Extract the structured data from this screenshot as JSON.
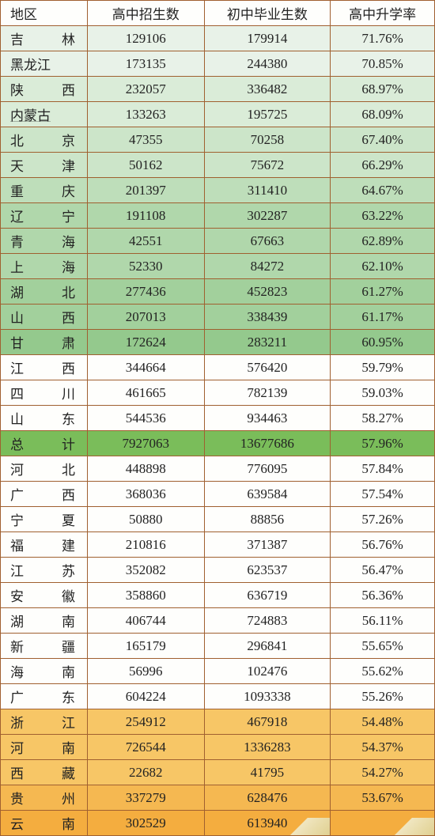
{
  "columns": [
    "地区",
    "高中招生数",
    "初中毕业生数",
    "高中升学率"
  ],
  "colors": {
    "border": "#a06030",
    "total_bg": "#7abd5a",
    "green_max": "#94c98d",
    "green_min": "#e8f2e8",
    "white": "#fefefc",
    "orange_min": "#f7c666",
    "orange_max": "#f4ad3f"
  },
  "rows": [
    {
      "region": [
        "吉",
        "林"
      ],
      "gap": 2,
      "enroll": "129106",
      "grad": "179914",
      "rate": "71.76%",
      "bg": "bg-green-1",
      "ul": true
    },
    {
      "region": [
        "黑龙江",
        ""
      ],
      "gap": 3,
      "enroll": "173135",
      "grad": "244380",
      "rate": "70.85%",
      "bg": "bg-green-1"
    },
    {
      "region": [
        "陕",
        "西"
      ],
      "gap": 2,
      "enroll": "232057",
      "grad": "336482",
      "rate": "68.97%",
      "bg": "bg-green-2",
      "ul": true
    },
    {
      "region": [
        "内蒙古",
        ""
      ],
      "gap": 3,
      "enroll": "133263",
      "grad": "195725",
      "rate": "68.09%",
      "bg": "bg-green-2",
      "ul": true
    },
    {
      "region": [
        "北",
        "京"
      ],
      "gap": 2,
      "enroll": "47355",
      "grad": "70258",
      "rate": "67.40%",
      "bg": "bg-green-3",
      "ul": true
    },
    {
      "region": [
        "天",
        "津"
      ],
      "gap": 2,
      "enroll": "50162",
      "grad": "75672",
      "rate": "66.29%",
      "bg": "bg-green-3",
      "ul": true
    },
    {
      "region": [
        "重",
        "庆"
      ],
      "gap": 2,
      "enroll": "201397",
      "grad": "311410",
      "rate": "64.67%",
      "bg": "bg-green-4",
      "ul": true
    },
    {
      "region": [
        "辽",
        "宁"
      ],
      "gap": 2,
      "enroll": "191108",
      "grad": "302287",
      "rate": "63.22%",
      "bg": "bg-green-5",
      "ul": true
    },
    {
      "region": [
        "青",
        "海"
      ],
      "gap": 2,
      "enroll": "42551",
      "grad": "67663",
      "rate": "62.89%",
      "bg": "bg-green-5",
      "ul": true
    },
    {
      "region": [
        "上",
        "海"
      ],
      "gap": 2,
      "enroll": "52330",
      "grad": "84272",
      "rate": "62.10%",
      "bg": "bg-green-5",
      "ul": true
    },
    {
      "region": [
        "湖",
        "北"
      ],
      "gap": 2,
      "enroll": "277436",
      "grad": "452823",
      "rate": "61.27%",
      "bg": "bg-green-6",
      "ul": true
    },
    {
      "region": [
        "山",
        "西"
      ],
      "gap": 2,
      "enroll": "207013",
      "grad": "338439",
      "rate": "61.17%",
      "bg": "bg-green-6",
      "ul": true
    },
    {
      "region": [
        "甘",
        "肃"
      ],
      "gap": 2,
      "enroll": "172624",
      "grad": "283211",
      "rate": "60.95%",
      "bg": "bg-green-7",
      "ul": true
    },
    {
      "region": [
        "江",
        "西"
      ],
      "gap": 2,
      "enroll": "344664",
      "grad": "576420",
      "rate": "59.79%",
      "bg": "bg-white",
      "ul": true
    },
    {
      "region": [
        "四",
        "川"
      ],
      "gap": 2,
      "enroll": "461665",
      "grad": "782139",
      "rate": "59.03%",
      "bg": "bg-white",
      "ul": true
    },
    {
      "region": [
        "山",
        "东"
      ],
      "gap": 2,
      "enroll": "544536",
      "grad": "934463",
      "rate": "58.27%",
      "bg": "bg-white",
      "ul": true
    },
    {
      "region": [
        "总",
        "计"
      ],
      "gap": 2,
      "enroll": "7927063",
      "grad": "13677686",
      "rate": "57.96%",
      "bg": "bg-total",
      "ul": true
    },
    {
      "region": [
        "河",
        "北"
      ],
      "gap": 2,
      "enroll": "448898",
      "grad": "776095",
      "rate": "57.84%",
      "bg": "bg-white",
      "ul": true
    },
    {
      "region": [
        "广",
        "西"
      ],
      "gap": 2,
      "enroll": "368036",
      "grad": "639584",
      "rate": "57.54%",
      "bg": "bg-white",
      "ul": true
    },
    {
      "region": [
        "宁",
        "夏"
      ],
      "gap": 2,
      "enroll": "50880",
      "grad": "88856",
      "rate": "57.26%",
      "bg": "bg-white",
      "ul": true
    },
    {
      "region": [
        "福",
        "建"
      ],
      "gap": 2,
      "enroll": "210816",
      "grad": "371387",
      "rate": "56.76%",
      "bg": "bg-white",
      "ul": true
    },
    {
      "region": [
        "江",
        "苏"
      ],
      "gap": 2,
      "enroll": "352082",
      "grad": "623537",
      "rate": "56.47%",
      "bg": "bg-white",
      "ul": true
    },
    {
      "region": [
        "安",
        "徽"
      ],
      "gap": 2,
      "enroll": "358860",
      "grad": "636719",
      "rate": "56.36%",
      "bg": "bg-white",
      "ul": true
    },
    {
      "region": [
        "湖",
        "南"
      ],
      "gap": 2,
      "enroll": "406744",
      "grad": "724883",
      "rate": "56.11%",
      "bg": "bg-white",
      "ul": true
    },
    {
      "region": [
        "新",
        "疆"
      ],
      "gap": 2,
      "enroll": "165179",
      "grad": "296841",
      "rate": "55.65%",
      "bg": "bg-white"
    },
    {
      "region": [
        "海",
        "南"
      ],
      "gap": 2,
      "enroll": "56996",
      "grad": "102476",
      "rate": "55.62%",
      "bg": "bg-white",
      "ul": true
    },
    {
      "region": [
        "广",
        "东"
      ],
      "gap": 2,
      "enroll": "604224",
      "grad": "1093338",
      "rate": "55.26%",
      "bg": "bg-white",
      "ul": true
    },
    {
      "region": [
        "浙",
        "江"
      ],
      "gap": 2,
      "enroll": "254912",
      "grad": "467918",
      "rate": "54.48%",
      "bg": "bg-orange-1",
      "ul": true
    },
    {
      "region": [
        "河",
        "南"
      ],
      "gap": 2,
      "enroll": "726544",
      "grad": "1336283",
      "rate": "54.37%",
      "bg": "bg-orange-1",
      "ul": true
    },
    {
      "region": [
        "西",
        "藏"
      ],
      "gap": 2,
      "enroll": "22682",
      "grad": "41795",
      "rate": "54.27%",
      "bg": "bg-orange-1",
      "ul": true
    },
    {
      "region": [
        "贵",
        "州"
      ],
      "gap": 2,
      "enroll": "337279",
      "grad": "628476",
      "rate": "53.67%",
      "bg": "bg-orange-2",
      "ul": true
    },
    {
      "region": [
        "云",
        "南"
      ],
      "gap": 2,
      "enroll": "302529",
      "grad": "613940",
      "rate": "",
      "bg": "bg-orange-3",
      "ul": true,
      "corner": true
    }
  ]
}
